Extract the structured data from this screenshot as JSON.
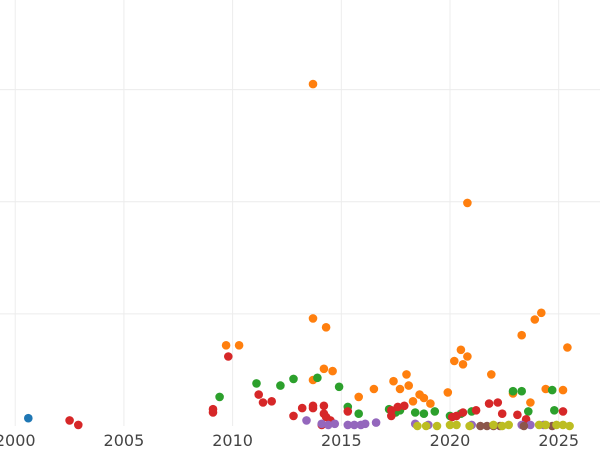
{
  "chart_data": {
    "type": "scatter",
    "title": "",
    "xlabel": "",
    "ylabel": "",
    "xlim": [
      1999.3,
      2026.9
    ],
    "ylim": [
      0,
      38
    ],
    "grid": true,
    "x_ticks": [
      2000,
      2005,
      2010,
      2015,
      2020,
      2025
    ],
    "x_tick_labels": [
      "2000",
      "2005",
      "2010",
      "2015",
      "2020",
      "2025"
    ],
    "y_ticks": [
      10,
      20,
      30
    ],
    "colors": {
      "blue": "#1f77b4",
      "orange": "#ff7f0e",
      "green": "#2ca02c",
      "red": "#d62728",
      "purple": "#9467bd",
      "brown": "#8c564b",
      "olive": "#bcbd22"
    },
    "series": [
      {
        "color": "blue",
        "points": [
          [
            2000.6,
            0.7
          ]
        ]
      },
      {
        "color": "orange",
        "points": [
          [
            2009.7,
            7.2
          ],
          [
            2010.3,
            7.2
          ],
          [
            2013.7,
            30.5
          ],
          [
            2013.7,
            9.6
          ],
          [
            2013.7,
            4.1
          ],
          [
            2014.3,
            8.8
          ],
          [
            2014.2,
            5.1
          ],
          [
            2014.6,
            4.9
          ],
          [
            2015.8,
            2.6
          ],
          [
            2016.5,
            3.3
          ],
          [
            2017.4,
            4.0
          ],
          [
            2017.7,
            3.3
          ],
          [
            2018.0,
            4.6
          ],
          [
            2018.1,
            3.6
          ],
          [
            2018.3,
            2.2
          ],
          [
            2018.6,
            2.8
          ],
          [
            2018.8,
            2.5
          ],
          [
            2019.1,
            2.0
          ],
          [
            2019.9,
            3.0
          ],
          [
            2020.2,
            5.8
          ],
          [
            2020.5,
            6.8
          ],
          [
            2020.6,
            5.5
          ],
          [
            2020.8,
            6.2
          ],
          [
            2020.8,
            19.9
          ],
          [
            2021.9,
            4.6
          ],
          [
            2022.9,
            2.9
          ],
          [
            2023.3,
            8.1
          ],
          [
            2023.7,
            2.1
          ],
          [
            2023.9,
            9.5
          ],
          [
            2024.2,
            10.1
          ],
          [
            2024.4,
            3.3
          ],
          [
            2025.2,
            3.2
          ],
          [
            2025.4,
            7.0
          ]
        ]
      },
      {
        "color": "green",
        "points": [
          [
            2009.4,
            2.6
          ],
          [
            2011.1,
            3.8
          ],
          [
            2012.2,
            3.6
          ],
          [
            2012.8,
            4.2
          ],
          [
            2013.9,
            4.3
          ],
          [
            2014.9,
            3.5
          ],
          [
            2015.3,
            1.7
          ],
          [
            2015.8,
            1.1
          ],
          [
            2017.2,
            1.5
          ],
          [
            2017.5,
            1.2
          ],
          [
            2017.7,
            1.4
          ],
          [
            2018.4,
            1.2
          ],
          [
            2018.8,
            1.1
          ],
          [
            2019.3,
            1.3
          ],
          [
            2020.0,
            0.9
          ],
          [
            2020.5,
            1.1
          ],
          [
            2021.0,
            1.3
          ],
          [
            2022.9,
            3.1
          ],
          [
            2023.3,
            3.1
          ],
          [
            2023.6,
            1.3
          ],
          [
            2024.7,
            3.2
          ],
          [
            2024.8,
            1.4
          ]
        ]
      },
      {
        "color": "red",
        "points": [
          [
            2009.1,
            1.2
          ],
          [
            2009.1,
            1.5
          ],
          [
            2009.8,
            6.2
          ],
          [
            2011.2,
            2.8
          ],
          [
            2011.4,
            2.1
          ],
          [
            2011.8,
            2.2
          ],
          [
            2012.8,
            0.9
          ],
          [
            2013.2,
            1.6
          ],
          [
            2013.7,
            1.6
          ],
          [
            2013.7,
            1.8
          ],
          [
            2014.2,
            1.8
          ],
          [
            2014.2,
            1.1
          ],
          [
            2014.3,
            0.8
          ],
          [
            2014.5,
            0.5
          ],
          [
            2014.1,
            0.1
          ],
          [
            2015.3,
            1.3
          ],
          [
            2017.3,
            0.9
          ],
          [
            2017.6,
            1.7
          ],
          [
            2017.9,
            1.8
          ],
          [
            2017.3,
            1.4
          ],
          [
            2020.1,
            0.8
          ],
          [
            2020.3,
            0.9
          ],
          [
            2020.6,
            1.2
          ],
          [
            2021.2,
            1.4
          ],
          [
            2021.8,
            2.0
          ],
          [
            2022.2,
            2.1
          ],
          [
            2022.4,
            1.1
          ],
          [
            2023.1,
            1.0
          ],
          [
            2023.5,
            0.6
          ],
          [
            2025.2,
            1.3
          ],
          [
            2002.5,
            0.5
          ],
          [
            2002.9,
            0.1
          ]
        ]
      },
      {
        "color": "purple",
        "points": [
          [
            2013.4,
            0.5
          ],
          [
            2014.1,
            0.2
          ],
          [
            2014.4,
            0.1
          ],
          [
            2014.7,
            0.2
          ],
          [
            2015.3,
            0.1
          ],
          [
            2015.6,
            0.1
          ],
          [
            2015.9,
            0.1
          ],
          [
            2016.1,
            0.2
          ],
          [
            2016.6,
            0.3
          ],
          [
            2018.4,
            0.2
          ],
          [
            2019.0,
            0.1
          ],
          [
            2021.0,
            0.1
          ],
          [
            2023.3,
            0.1
          ],
          [
            2023.7,
            0.1
          ],
          [
            2024.3,
            0.1
          ]
        ]
      },
      {
        "color": "brown",
        "points": [
          [
            2021.4,
            0.0
          ],
          [
            2021.7,
            0.0
          ],
          [
            2022.0,
            0.0
          ],
          [
            2022.3,
            0.0
          ],
          [
            2023.4,
            0.0
          ],
          [
            2024.7,
            0.0
          ]
        ]
      },
      {
        "color": "olive",
        "points": [
          [
            2018.5,
            0.0
          ],
          [
            2018.9,
            0.0
          ],
          [
            2019.4,
            0.0
          ],
          [
            2020.0,
            0.1
          ],
          [
            2020.3,
            0.1
          ],
          [
            2020.9,
            0.0
          ],
          [
            2022.0,
            0.1
          ],
          [
            2022.4,
            0.0
          ],
          [
            2022.7,
            0.1
          ],
          [
            2024.1,
            0.1
          ],
          [
            2024.4,
            0.1
          ],
          [
            2024.9,
            0.1
          ],
          [
            2025.2,
            0.1
          ],
          [
            2025.5,
            0.0
          ]
        ]
      }
    ]
  }
}
